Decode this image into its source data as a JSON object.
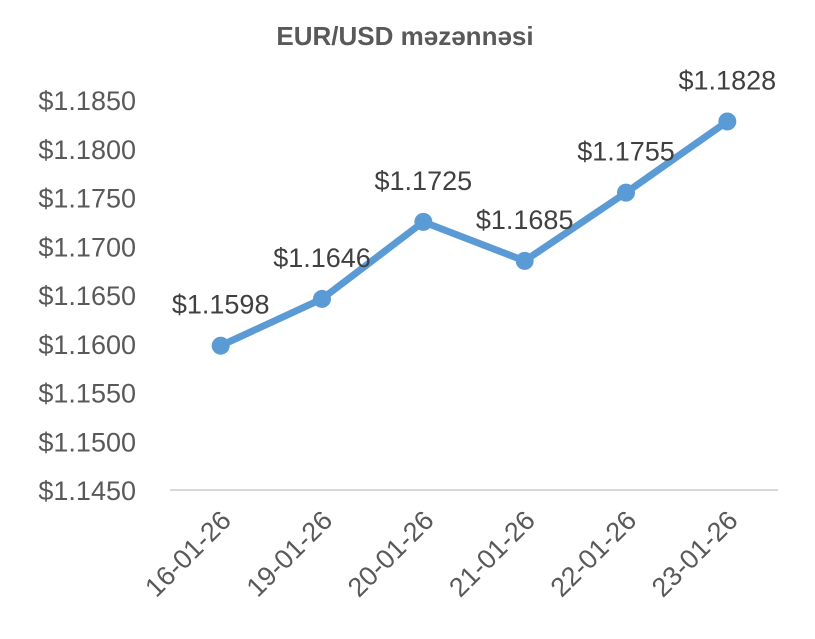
{
  "chart_data": {
    "type": "line",
    "title": "EUR/USD məzənnəsi",
    "categories": [
      "16-01-26",
      "19-01-26",
      "20-01-26",
      "21-01-26",
      "22-01-26",
      "23-01-26"
    ],
    "series": [
      {
        "values": [
          1.1598,
          1.1646,
          1.1725,
          1.1685,
          1.1755,
          1.1828
        ],
        "labels": [
          "$1.1598",
          "$1.1646",
          "$1.1725",
          "$1.1685",
          "$1.1755",
          "$1.1828"
        ],
        "color": "#5B9BD5"
      }
    ],
    "yticks": [
      "$1.1450",
      "$1.1500",
      "$1.1550",
      "$1.1600",
      "$1.1650",
      "$1.1700",
      "$1.1750",
      "$1.1800",
      "$1.1850"
    ],
    "ylim": [
      1.145,
      1.185
    ],
    "ytick_step": 0.005,
    "grid": false,
    "legend": "none",
    "axis_color": "#D9D9D9",
    "text_color": "#595959"
  }
}
